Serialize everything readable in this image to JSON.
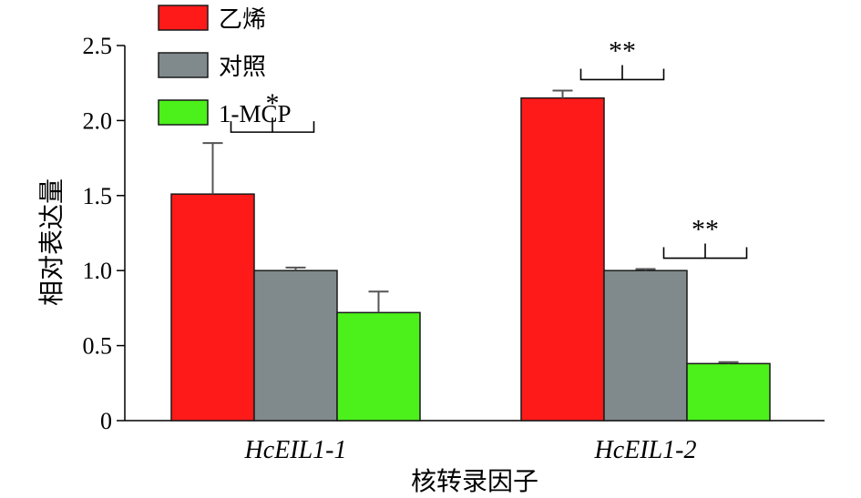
{
  "chart_data": {
    "type": "bar",
    "title": "",
    "xlabel": "核转录因子",
    "ylabel": "相对表达量",
    "ylim": [
      0,
      2.5
    ],
    "yticks": [
      "0",
      "0.5",
      "1.0",
      "1.5",
      "2.0",
      "2.5"
    ],
    "categories": [
      "HcEIL1-1",
      "HcEIL1-2"
    ],
    "series": [
      {
        "name": "乙烯",
        "color": "#ff1a1a",
        "values": [
          1.51,
          2.15
        ],
        "errors": [
          0.34,
          0.05
        ]
      },
      {
        "name": "对照",
        "color": "#808a8c",
        "values": [
          1.0,
          1.0
        ],
        "errors": [
          0.02,
          0.01
        ]
      },
      {
        "name": "1-MCP",
        "color": "#4cf01a",
        "values": [
          0.72,
          0.38
        ],
        "errors": [
          0.14,
          0.01
        ]
      }
    ],
    "significance": [
      {
        "category": 0,
        "between": [
          0,
          1
        ],
        "label": "*"
      },
      {
        "category": 1,
        "between": [
          0,
          1
        ],
        "label": "**"
      },
      {
        "category": 1,
        "between": [
          1,
          2
        ],
        "label": "**"
      }
    ],
    "legend": "top-left",
    "grid": false
  }
}
